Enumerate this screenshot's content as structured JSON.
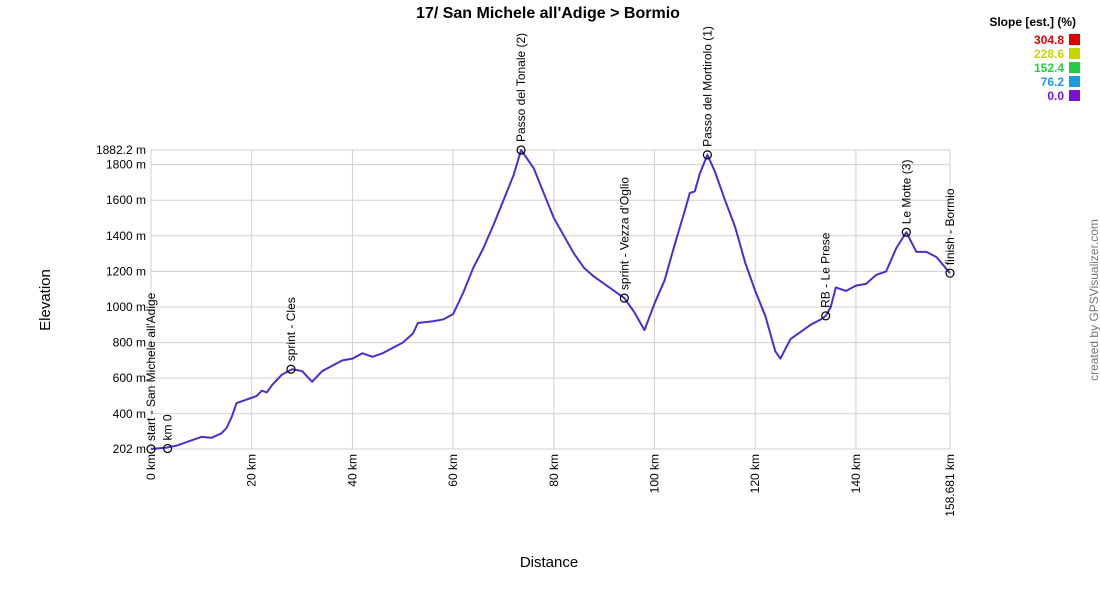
{
  "chart_data": {
    "type": "line",
    "title": "17/ San Michele all'Adige > Bormio",
    "x_label": "Distance",
    "y_label": "Elevation",
    "credit": "created by GPSVisualizer.com",
    "xlim": [
      0,
      158.681
    ],
    "ylim": [
      202,
      1882.2
    ],
    "xticks": [
      {
        "value": 0,
        "label": "0 km"
      },
      {
        "value": 20,
        "label": "20 km"
      },
      {
        "value": 40,
        "label": "40 km"
      },
      {
        "value": 60,
        "label": "60 km"
      },
      {
        "value": 80,
        "label": "80 km"
      },
      {
        "value": 100,
        "label": "100 km"
      },
      {
        "value": 120,
        "label": "120 km"
      },
      {
        "value": 140,
        "label": "140 km"
      },
      {
        "value": 158.681,
        "label": "158.681 km"
      }
    ],
    "yticks": [
      {
        "value": 202,
        "label": "202 m"
      },
      {
        "value": 400,
        "label": "400 m"
      },
      {
        "value": 600,
        "label": "600 m"
      },
      {
        "value": 800,
        "label": "800 m"
      },
      {
        "value": 1000,
        "label": "1000 m"
      },
      {
        "value": 1200,
        "label": "1200 m"
      },
      {
        "value": 1400,
        "label": "1400 m"
      },
      {
        "value": 1600,
        "label": "1600 m"
      },
      {
        "value": 1800,
        "label": "1800 m"
      },
      {
        "value": 1882.2,
        "label": "1882.2 m"
      }
    ],
    "grid": true,
    "x": [
      0,
      3,
      5,
      8,
      10,
      12,
      14,
      15,
      16,
      17,
      19,
      20,
      21,
      22,
      23,
      24,
      26,
      28,
      30,
      31,
      32,
      34,
      36,
      38,
      40,
      42,
      44,
      46,
      48,
      50,
      52,
      53,
      56,
      58,
      60,
      62,
      64,
      66,
      68,
      70,
      72,
      73.5,
      76,
      78,
      80,
      82,
      84,
      86,
      88,
      90,
      92,
      94,
      96,
      98,
      100,
      102,
      104,
      106,
      107,
      108,
      109,
      110.5,
      112,
      114,
      116,
      118,
      120,
      122,
      124,
      125,
      127,
      129,
      131,
      133,
      134,
      135,
      136,
      138,
      140,
      142,
      144,
      146,
      148,
      150,
      152,
      154,
      156,
      158.681
    ],
    "series": [
      {
        "name": "Elevation",
        "color": "#4a2fd0",
        "values": [
          202,
          210,
          220,
          250,
          270,
          265,
          290,
          320,
          380,
          460,
          480,
          490,
          500,
          530,
          520,
          560,
          620,
          650,
          640,
          610,
          580,
          640,
          670,
          700,
          710,
          740,
          720,
          740,
          770,
          800,
          850,
          910,
          920,
          930,
          960,
          1080,
          1220,
          1330,
          1460,
          1600,
          1740,
          1882.2,
          1780,
          1640,
          1500,
          1400,
          1300,
          1220,
          1170,
          1130,
          1090,
          1050,
          970,
          870,
          1020,
          1150,
          1350,
          1540,
          1640,
          1650,
          1750,
          1855,
          1760,
          1600,
          1450,
          1250,
          1090,
          950,
          750,
          710,
          820,
          860,
          900,
          930,
          950,
          1000,
          1110,
          1090,
          1120,
          1130,
          1180,
          1200,
          1330,
          1420,
          1310,
          1310,
          1280,
          1190
        ]
      }
    ],
    "waypoints": [
      {
        "name": "start - San Michele all'Adige",
        "x": 0,
        "elevation": 202
      },
      {
        "name": "km 0",
        "x": 3.3,
        "elevation": 205
      },
      {
        "name": "sprint - Cles",
        "x": 27.8,
        "elevation": 650
      },
      {
        "name": "Passo del Tonale (2)",
        "x": 73.5,
        "elevation": 1882.2
      },
      {
        "name": "sprint - Vezza d'Oglio",
        "x": 94,
        "elevation": 1050
      },
      {
        "name": "Passo del Mortirolo (1)",
        "x": 110.5,
        "elevation": 1855
      },
      {
        "name": "RB - Le Prese",
        "x": 134,
        "elevation": 950
      },
      {
        "name": "Le Motte (3)",
        "x": 150,
        "elevation": 1420
      },
      {
        "name": "finish - Bormio",
        "x": 158.681,
        "elevation": 1190
      }
    ],
    "legend": {
      "title": "Slope [est.] (%)",
      "entries": [
        {
          "label": 304.8,
          "color": "#e00000"
        },
        {
          "label": 228.6,
          "color": "#c8d400"
        },
        {
          "label": 152.4,
          "color": "#22cc44"
        },
        {
          "label": 76.2,
          "color": "#1a9be0"
        },
        {
          "label": {
            "value": 0,
            "label": "0.0"
          },
          "color": "#7a10d8"
        }
      ]
    }
  }
}
